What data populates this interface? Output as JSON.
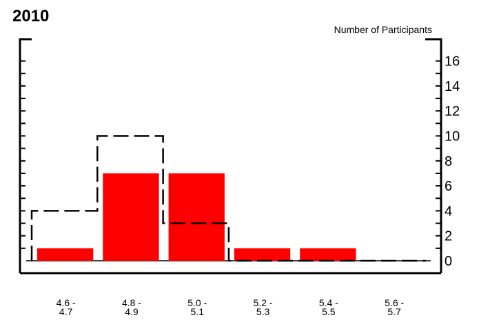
{
  "chart_data": {
    "type": "bar",
    "title": "2010",
    "ylabel": "Number of Participants",
    "xlabel": "",
    "categories": [
      [
        "4.6 -",
        "4.7"
      ],
      [
        "4.8 -",
        "4.9"
      ],
      [
        "5.0 -",
        "5.1"
      ],
      [
        "5.2 -",
        "5.3"
      ],
      [
        "5.4 -",
        "5.5"
      ],
      [
        "5.6 -",
        "5.7"
      ]
    ],
    "series": [
      {
        "style": "bars",
        "color": "#ff0000",
        "values": [
          1,
          7,
          7,
          1,
          1,
          0
        ]
      },
      {
        "style": "dashed-step",
        "color": "#000000",
        "values": [
          4,
          10,
          3,
          0,
          0,
          0
        ]
      }
    ],
    "ylim": [
      0,
      17
    ],
    "yticks": [
      0,
      2,
      4,
      6,
      8,
      10,
      12,
      14,
      16
    ],
    "axis_side": "right",
    "grid": false
  }
}
